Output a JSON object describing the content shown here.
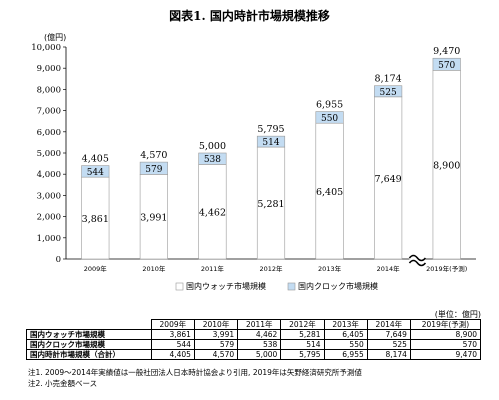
{
  "title": "図表1. 国内時計市場規模推移",
  "chart_data": {
    "type": "bar",
    "stacked": true,
    "yunit": "(億円)",
    "ylim": [
      0,
      10000
    ],
    "yticks": [
      "0",
      "1,000",
      "2,000",
      "3,000",
      "4,000",
      "5,000",
      "6,000",
      "7,000",
      "8,000",
      "9,000",
      "10,000"
    ],
    "categories": [
      "2009年",
      "2010年",
      "2011年",
      "2012年",
      "2013年",
      "2014年",
      "2019年(予測)"
    ],
    "series": [
      {
        "name": "国内ウォッチ市場規模",
        "color": "#ffffff",
        "values": [
          3861,
          3991,
          4462,
          5281,
          6405,
          7649,
          8900
        ],
        "labels": [
          "3,861",
          "3,991",
          "4,462",
          "5,281",
          "6,405",
          "7,649",
          "8,900"
        ]
      },
      {
        "name": "国内クロック市場規模",
        "color": "#c3dcf2",
        "values": [
          544,
          579,
          538,
          514,
          550,
          525,
          570
        ],
        "labels": [
          "544",
          "579",
          "538",
          "514",
          "550",
          "525",
          "570"
        ]
      }
    ],
    "totals": [
      4405,
      4570,
      5000,
      5795,
      6955,
      8174,
      9470
    ],
    "total_labels": [
      "4,405",
      "4,570",
      "5,000",
      "5,795",
      "6,955",
      "8,174",
      "9,470"
    ],
    "axis_break": true,
    "legend_position": "bottom"
  },
  "unit_note": "(単位：億円)",
  "table": {
    "headers": [
      "2009年",
      "2010年",
      "2011年",
      "2012年",
      "2013年",
      "2014年",
      "2019年(予測)"
    ],
    "rows": [
      {
        "label": "国内ウォッチ市場規模",
        "values": [
          "3,861",
          "3,991",
          "4,462",
          "5,281",
          "6,405",
          "7,649",
          "8,900"
        ]
      },
      {
        "label": "国内クロック市場規模",
        "values": [
          "544",
          "579",
          "538",
          "514",
          "550",
          "525",
          "570"
        ]
      },
      {
        "label": "国内時計市場規模（合計）",
        "values": [
          "4,405",
          "4,570",
          "5,000",
          "5,795",
          "6,955",
          "8,174",
          "9,470"
        ]
      }
    ]
  },
  "notes": [
    "注1. 2009～2014年実績値は一般社団法人日本時計協会より引用, 2019年は矢野経済研究所予測値",
    "注2. 小売金額ベース"
  ]
}
